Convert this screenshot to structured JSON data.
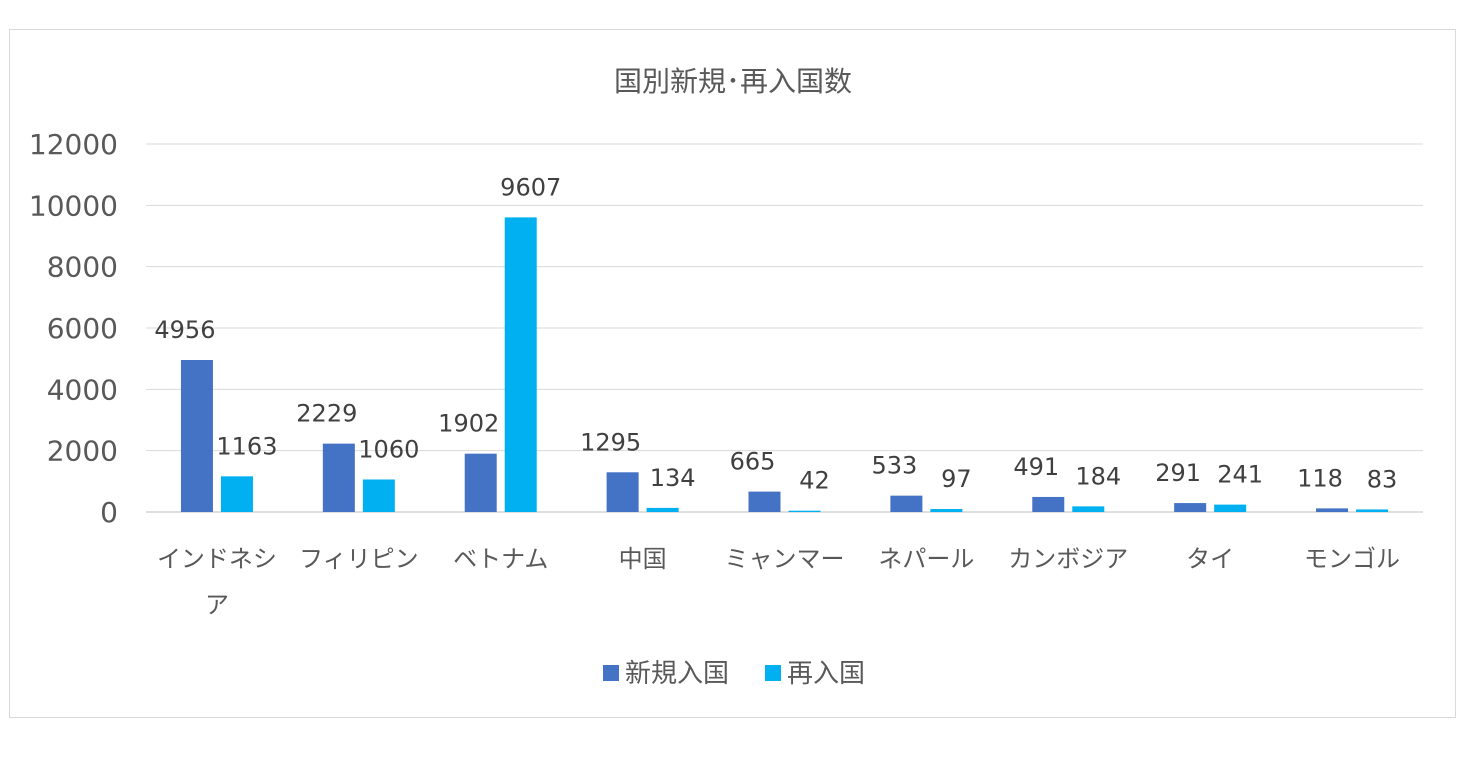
{
  "chart_data": {
    "type": "bar",
    "title": "国別新規･再入国数",
    "xlabel": "",
    "ylabel": "",
    "ylim": [
      0,
      12000
    ],
    "yticks": [
      0,
      2000,
      4000,
      6000,
      8000,
      10000,
      12000
    ],
    "grid": true,
    "legend_position": "bottom",
    "categories": [
      [
        "インドネシ",
        "ア"
      ],
      [
        "フィリピン"
      ],
      [
        "ベトナム"
      ],
      [
        "中国"
      ],
      [
        "ミャンマー"
      ],
      [
        "ネパール"
      ],
      [
        "カンボジア"
      ],
      [
        "タイ"
      ],
      [
        "モンゴル"
      ]
    ],
    "series": [
      {
        "name": "新規入国",
        "color": "#4472C4",
        "values": [
          4956,
          2229,
          1902,
          1295,
          665,
          533,
          491,
          291,
          118
        ]
      },
      {
        "name": "再入国",
        "color": "#00B0F0",
        "values": [
          1163,
          1060,
          9607,
          134,
          42,
          97,
          184,
          241,
          83
        ]
      }
    ]
  }
}
